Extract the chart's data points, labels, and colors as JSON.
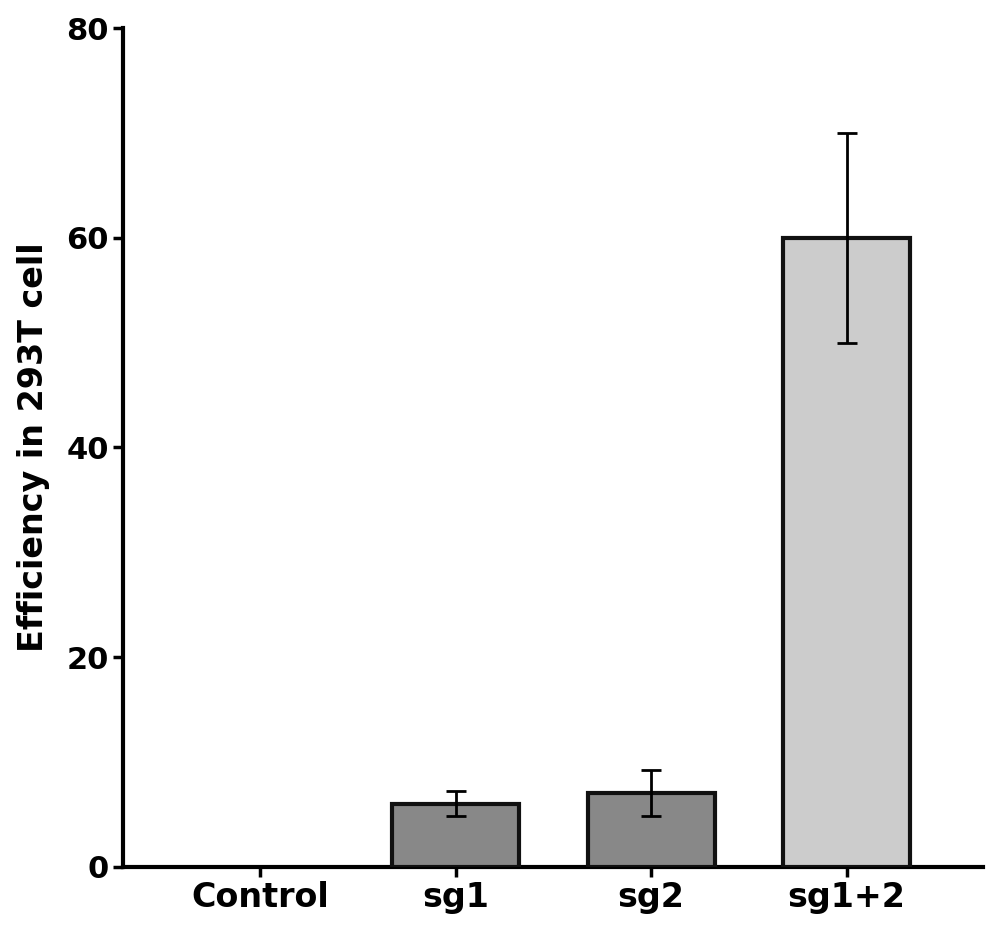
{
  "categories": [
    "Control",
    "sg1",
    "sg2",
    "sg1+2"
  ],
  "values": [
    0,
    6.0,
    7.0,
    60.0
  ],
  "errors": [
    0,
    1.2,
    2.2,
    10.0
  ],
  "bar_colors": [
    "#ffffff",
    "#888888",
    "#888888",
    "#cccccc"
  ],
  "bar_edgecolors": [
    "#ffffff",
    "#111111",
    "#111111",
    "#111111"
  ],
  "ylabel": "Efficiency in 293T cell",
  "ylim": [
    0,
    80
  ],
  "yticks": [
    0,
    20,
    40,
    60,
    80
  ],
  "background_color": "#ffffff",
  "bar_width": 0.65,
  "bar_linewidth": 3.0,
  "error_linewidth": 2.0,
  "error_capsize": 7,
  "ylabel_fontsize": 24,
  "tick_fontsize": 22,
  "xlabel_fontsize": 24,
  "spine_linewidth": 3.0
}
